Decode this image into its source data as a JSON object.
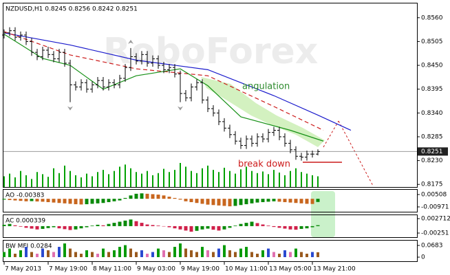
{
  "chart_data": [
    {
      "type": "ohlc",
      "header": "NZDUSD,H1 0.8245 0.8256 0.8242 0.8251",
      "watermark": "RoboForex",
      "color": "#000000",
      "ylim": [
        0.8169,
        0.8593
      ],
      "yticks": [
        {
          "value": 0.856,
          "label": "0.8560"
        },
        0.8505,
        {
          "value": 0.845,
          "label": "0.8450"
        },
        0.8395,
        {
          "value": 0.834,
          "label": "0.8340"
        },
        0.8285,
        {
          "value": 0.823,
          "label": "0.8230"
        },
        0.8175
      ],
      "xticks": [
        {
          "value": 0,
          "label": "7 May 2013"
        },
        {
          "value": 8,
          "label": "7 May 19:00"
        },
        {
          "value": 16,
          "label": "8 May 11:00"
        },
        {
          "value": 24,
          "label": "9 May 03:00"
        },
        {
          "value": 32,
          "label": "9 May 19:00"
        },
        {
          "value": 40,
          "label": "10 May 11:00"
        },
        {
          "value": 48,
          "label": "13 May 05:00"
        },
        {
          "value": 56,
          "label": "13 May 21:00"
        }
      ],
      "price_line": 0.8251,
      "open": [
        0.852,
        0.8525,
        0.853,
        0.8515,
        0.852,
        0.8505,
        0.848,
        0.847,
        0.8485,
        0.8475,
        0.8465,
        0.848,
        0.8455,
        0.8405,
        0.84,
        0.841,
        0.8395,
        0.8405,
        0.8415,
        0.84,
        0.841,
        0.8405,
        0.842,
        0.8445,
        0.847,
        0.846,
        0.8475,
        0.8455,
        0.8465,
        0.845,
        0.844,
        0.8445,
        0.843,
        0.8385,
        0.8375,
        0.84,
        0.841,
        0.837,
        0.835,
        0.834,
        0.832,
        0.8305,
        0.829,
        0.8275,
        0.8265,
        0.828,
        0.827,
        0.8285,
        0.828,
        0.8295,
        0.83,
        0.8285,
        0.827,
        0.8255,
        0.824,
        0.8238,
        0.8245,
        0.8245
      ],
      "high": [
        0.8533,
        0.8538,
        0.8538,
        0.8528,
        0.8528,
        0.8513,
        0.8488,
        0.8493,
        0.8493,
        0.8483,
        0.8488,
        0.8488,
        0.8463,
        0.8413,
        0.8418,
        0.8418,
        0.8413,
        0.8423,
        0.8423,
        0.8418,
        0.8418,
        0.8428,
        0.8453,
        0.849,
        0.8478,
        0.8483,
        0.8483,
        0.8473,
        0.8473,
        0.8458,
        0.8453,
        0.8453,
        0.8438,
        0.8393,
        0.8408,
        0.8418,
        0.8418,
        0.8378,
        0.8358,
        0.8348,
        0.8328,
        0.8313,
        0.8298,
        0.8283,
        0.8288,
        0.8288,
        0.8293,
        0.8293,
        0.8303,
        0.8308,
        0.8308,
        0.8293,
        0.8278,
        0.8263,
        0.8248,
        0.8253,
        0.8253,
        0.8256
      ],
      "low": [
        0.8512,
        0.8517,
        0.8507,
        0.8507,
        0.8497,
        0.8472,
        0.8462,
        0.8462,
        0.8467,
        0.8457,
        0.8457,
        0.8447,
        0.8365,
        0.8392,
        0.8392,
        0.8387,
        0.8387,
        0.8397,
        0.8392,
        0.8392,
        0.8397,
        0.8397,
        0.8412,
        0.8437,
        0.8452,
        0.8452,
        0.8447,
        0.8447,
        0.8442,
        0.8432,
        0.8432,
        0.8422,
        0.8365,
        0.8367,
        0.8367,
        0.8392,
        0.8362,
        0.8342,
        0.8332,
        0.8312,
        0.8297,
        0.8282,
        0.8267,
        0.8257,
        0.8257,
        0.8262,
        0.8262,
        0.8272,
        0.8272,
        0.8287,
        0.8277,
        0.8262,
        0.8247,
        0.8232,
        0.823,
        0.823,
        0.8237,
        0.8242
      ],
      "close": [
        0.8525,
        0.853,
        0.8515,
        0.852,
        0.8505,
        0.848,
        0.847,
        0.8485,
        0.8475,
        0.8465,
        0.848,
        0.8455,
        0.8405,
        0.84,
        0.841,
        0.8395,
        0.8405,
        0.8415,
        0.84,
        0.841,
        0.8405,
        0.842,
        0.8445,
        0.847,
        0.846,
        0.8475,
        0.8455,
        0.8465,
        0.845,
        0.844,
        0.8445,
        0.843,
        0.8385,
        0.8375,
        0.84,
        0.841,
        0.837,
        0.835,
        0.834,
        0.832,
        0.8305,
        0.829,
        0.8275,
        0.8265,
        0.828,
        0.827,
        0.8285,
        0.828,
        0.8295,
        0.83,
        0.8285,
        0.827,
        0.8255,
        0.824,
        0.8238,
        0.8245,
        0.8245,
        0.8251
      ],
      "volume": {
        "color": "#00a000",
        "values": [
          20,
          25,
          18,
          30,
          22,
          15,
          28,
          24,
          19,
          35,
          26,
          40,
          30,
          22,
          18,
          25,
          20,
          28,
          32,
          24,
          30,
          38,
          42,
          35,
          28,
          25,
          30,
          22,
          26,
          34,
          28,
          32,
          45,
          38,
          30,
          26,
          35,
          40,
          32,
          28,
          36,
          30,
          25,
          33,
          38,
          30,
          26,
          29,
          24,
          32,
          27,
          22,
          30,
          35,
          28,
          25,
          22,
          20
        ]
      },
      "lines": [
        {
          "color": "#1a1acc",
          "dashed": false,
          "x": [
            0,
            12,
            24,
            37,
            49,
            57,
            63
          ],
          "values": [
            0.8525,
            0.8497,
            0.8462,
            0.844,
            0.838,
            0.8335,
            0.83
          ]
        },
        {
          "color": "#cc1a1a",
          "dashed": true,
          "x": [
            0,
            12,
            24,
            37,
            49,
            58
          ],
          "values": [
            0.8528,
            0.8474,
            0.8442,
            0.8426,
            0.8355,
            0.83
          ]
        },
        {
          "color": "#159015",
          "dashed": false,
          "x": [
            0,
            7,
            12,
            18,
            24,
            32,
            37,
            43,
            52,
            58
          ],
          "values": [
            0.8522,
            0.8466,
            0.845,
            0.8395,
            0.8426,
            0.8442,
            0.8403,
            0.8331,
            0.83,
            0.8275
          ]
        }
      ],
      "annotations": [
        {
          "text": "angulation",
          "color": "#2e8b2e"
        },
        {
          "text": "break down",
          "color": "#cc1a1a"
        }
      ]
    },
    {
      "type": "bar",
      "label": "AO -0.00383",
      "up_color": "#0a8a0a",
      "down_color": "#c8661e",
      "ylim": [
        -0.0155,
        0.0108
      ],
      "yticks": [
        0.00508,
        -0.00971
      ],
      "values": [
        -0.001,
        -0.0015,
        -0.002,
        -0.0025,
        -0.003,
        -0.0028,
        -0.0032,
        -0.0035,
        -0.004,
        -0.0045,
        -0.005,
        -0.0055,
        -0.006,
        -0.0065,
        -0.0068,
        -0.0065,
        -0.006,
        -0.0055,
        -0.005,
        -0.004,
        -0.003,
        -0.002,
        0.001,
        0.004,
        0.006,
        0.0065,
        0.006,
        0.0055,
        0.005,
        0.004,
        0.0025,
        0.001,
        -0.001,
        -0.003,
        -0.004,
        -0.005,
        -0.006,
        -0.007,
        -0.0075,
        -0.008,
        -0.0085,
        -0.009,
        -0.0085,
        -0.0075,
        -0.0065,
        -0.0055,
        -0.0045,
        -0.004,
        -0.0035,
        -0.003,
        -0.0035,
        -0.004,
        -0.0045,
        -0.005,
        -0.0055,
        -0.006,
        -0.0062,
        -0.00383
      ]
    },
    {
      "type": "bar",
      "label": "AC 0.000339",
      "up_color": "#0a8a0a",
      "down_color": "#d0204a",
      "ylim": [
        -0.004,
        0.00396
      ],
      "yticks": [
        0.002712,
        -0.00251
      ],
      "values": [
        0.0005,
        0.0008,
        0.0003,
        -0.0002,
        -0.0006,
        -0.0009,
        -0.0012,
        -0.001,
        -0.0007,
        -0.0004,
        -0.0008,
        -0.0011,
        -0.0014,
        -0.0012,
        -0.0008,
        -0.0004,
        0.0002,
        0.0005,
        0.0003,
        0.0008,
        0.0012,
        0.0016,
        0.002,
        0.0024,
        0.0018,
        0.0012,
        0.0006,
        0.0004,
        0.0002,
        -0.0001,
        -0.0004,
        -0.0008,
        -0.0012,
        -0.0016,
        -0.002,
        -0.0017,
        -0.0012,
        -0.0009,
        -0.0013,
        -0.0016,
        -0.0012,
        -0.0006,
        0.0002,
        0.0008,
        0.0012,
        0.0016,
        0.0011,
        0.0006,
        0.0002,
        -0.0003,
        -0.0006,
        -0.0009,
        -0.0012,
        -0.0013,
        -0.001,
        -0.0008,
        -0.0004,
        0.000339
      ]
    },
    {
      "type": "mfi",
      "label": "BW MFI 0.0284",
      "green_color": "#0a9a0a",
      "fade_color": "#9a5a1e",
      "fake_color": "#2a4ad0",
      "squat_color": "#e070b0",
      "ylim": [
        -0.024,
        0.0964
      ],
      "yticks": [
        0.0683,
        0
      ],
      "values": [
        0.03,
        0.05,
        0.02,
        0.04,
        0.06,
        0.03,
        0.02,
        0.05,
        0.04,
        0.03,
        0.06,
        0.08,
        0.05,
        0.03,
        0.02,
        0.04,
        0.03,
        0.02,
        0.05,
        0.03,
        0.04,
        0.06,
        0.07,
        0.05,
        0.03,
        0.04,
        0.02,
        0.03,
        0.05,
        0.04,
        0.03,
        0.06,
        0.08,
        0.05,
        0.04,
        0.03,
        0.06,
        0.04,
        0.03,
        0.05,
        0.07,
        0.04,
        0.03,
        0.05,
        0.06,
        0.03,
        0.02,
        0.04,
        0.05,
        0.03,
        0.02,
        0.04,
        0.03,
        0.05,
        0.03,
        0.02,
        0.03,
        0.0284
      ]
    }
  ]
}
